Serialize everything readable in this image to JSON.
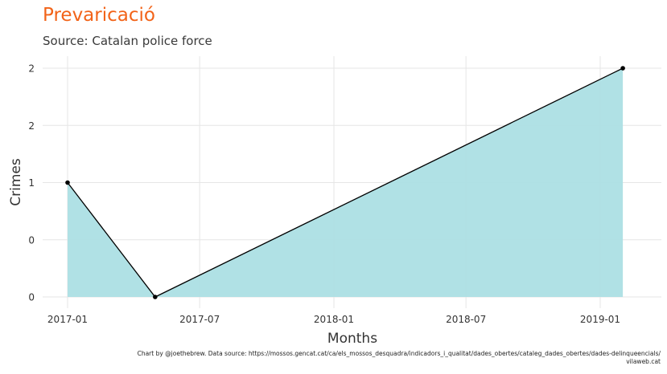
{
  "title": "Prevaricació",
  "subtitle": "Source: Catalan police force",
  "caption": {
    "line1": "Chart by @joethebrew. Data source: https://mossos.gencat.cat/ca/els_mossos_desquadra/indicadors_i_qualitat/dades_obertes/cataleg_dades_obertes/dades-delinqueencials/",
    "line2": "vilaweb.cat"
  },
  "colors": {
    "title": "#f26318",
    "area_fill": "#acdfe4",
    "line": "#000000",
    "grid": "#e6e6e6"
  },
  "chart_data": {
    "type": "area",
    "x": [
      "2017-01",
      "2017-05",
      "2019-02"
    ],
    "series": [
      {
        "values": [
          1,
          0,
          2
        ]
      }
    ],
    "xlabel": "Months",
    "ylabel": "Crimes",
    "x_ticks": [
      "2017-01",
      "2017-07",
      "2018-01",
      "2018-07",
      "2019-01"
    ],
    "y_tick_labels": [
      "0",
      "0",
      "1",
      "2",
      "2"
    ],
    "ylim": [
      0,
      2
    ],
    "grid": true,
    "markers": true
  }
}
